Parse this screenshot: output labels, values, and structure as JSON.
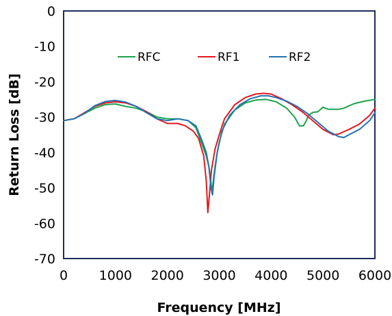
{
  "chart_data": {
    "type": "line",
    "title": "",
    "xlabel": "Frequency  [MHz]",
    "ylabel": "Return Loss  [dB]",
    "xlim": [
      0,
      6000
    ],
    "ylim": [
      -70,
      0
    ],
    "xticks": [
      0,
      1000,
      2000,
      3000,
      4000,
      5000,
      6000
    ],
    "yticks": [
      0,
      -10,
      -20,
      -30,
      -40,
      -50,
      -60,
      -70
    ],
    "xtick_labels": [
      "0",
      "1000",
      "2000",
      "3000",
      "4000",
      "5000",
      "6000"
    ],
    "ytick_labels": [
      "0",
      "-10",
      "-20",
      "-30",
      "-40",
      "-50",
      "-60",
      "-70"
    ],
    "grid": false,
    "legend_position": "top",
    "series": [
      {
        "name": "RFC",
        "color": "#1aa34a",
        "points": [
          [
            0,
            -31
          ],
          [
            200,
            -30.5
          ],
          [
            400,
            -29
          ],
          [
            600,
            -27.5
          ],
          [
            800,
            -26.5
          ],
          [
            1000,
            -26.3
          ],
          [
            1200,
            -27
          ],
          [
            1400,
            -27.5
          ],
          [
            1600,
            -28.5
          ],
          [
            1800,
            -30
          ],
          [
            2000,
            -30.5
          ],
          [
            2200,
            -30.5
          ],
          [
            2400,
            -31
          ],
          [
            2550,
            -33
          ],
          [
            2650,
            -37
          ],
          [
            2750,
            -41
          ],
          [
            2800,
            -44
          ],
          [
            2830,
            -47
          ],
          [
            2860,
            -51.5
          ],
          [
            2900,
            -46
          ],
          [
            2950,
            -41
          ],
          [
            3000,
            -37
          ],
          [
            3100,
            -32
          ],
          [
            3300,
            -28
          ],
          [
            3500,
            -26
          ],
          [
            3700,
            -25.2
          ],
          [
            3900,
            -25
          ],
          [
            4100,
            -25.7
          ],
          [
            4300,
            -27.5
          ],
          [
            4450,
            -30
          ],
          [
            4550,
            -32.5
          ],
          [
            4620,
            -32.5
          ],
          [
            4680,
            -31
          ],
          [
            4720,
            -29.5
          ],
          [
            4800,
            -28.7
          ],
          [
            4900,
            -28.5
          ],
          [
            5000,
            -27.2
          ],
          [
            5100,
            -27.8
          ],
          [
            5300,
            -27.8
          ],
          [
            5400,
            -27.5
          ],
          [
            5600,
            -26.2
          ],
          [
            5800,
            -25.5
          ],
          [
            6000,
            -25
          ]
        ]
      },
      {
        "name": "RF1",
        "color": "#e3171b",
        "points": [
          [
            0,
            -31
          ],
          [
            200,
            -30.5
          ],
          [
            400,
            -28.8
          ],
          [
            600,
            -27
          ],
          [
            800,
            -26
          ],
          [
            1000,
            -25.7
          ],
          [
            1200,
            -26
          ],
          [
            1400,
            -27
          ],
          [
            1600,
            -28.5
          ],
          [
            1800,
            -30.5
          ],
          [
            2000,
            -31.8
          ],
          [
            2200,
            -31.8
          ],
          [
            2350,
            -32.5
          ],
          [
            2500,
            -34
          ],
          [
            2600,
            -36
          ],
          [
            2700,
            -41
          ],
          [
            2750,
            -48
          ],
          [
            2780,
            -57
          ],
          [
            2810,
            -52
          ],
          [
            2850,
            -45
          ],
          [
            2920,
            -39
          ],
          [
            3000,
            -35
          ],
          [
            3100,
            -30.5
          ],
          [
            3300,
            -26.5
          ],
          [
            3500,
            -24.5
          ],
          [
            3700,
            -23.5
          ],
          [
            3850,
            -23.3
          ],
          [
            4000,
            -23.5
          ],
          [
            4200,
            -24.8
          ],
          [
            4400,
            -26.5
          ],
          [
            4600,
            -28.5
          ],
          [
            4800,
            -31
          ],
          [
            5000,
            -33.5
          ],
          [
            5200,
            -35
          ],
          [
            5300,
            -34.8
          ],
          [
            5500,
            -33.5
          ],
          [
            5700,
            -32
          ],
          [
            5900,
            -29.5
          ],
          [
            6000,
            -27.5
          ]
        ]
      },
      {
        "name": "RF2",
        "color": "#2272b4",
        "points": [
          [
            0,
            -31
          ],
          [
            200,
            -30.5
          ],
          [
            400,
            -29
          ],
          [
            600,
            -26.8
          ],
          [
            800,
            -25.6
          ],
          [
            1000,
            -25.3
          ],
          [
            1200,
            -25.8
          ],
          [
            1400,
            -27
          ],
          [
            1600,
            -28.8
          ],
          [
            1800,
            -30.5
          ],
          [
            2000,
            -31
          ],
          [
            2200,
            -30.5
          ],
          [
            2400,
            -31
          ],
          [
            2550,
            -32.5
          ],
          [
            2650,
            -36
          ],
          [
            2750,
            -40
          ],
          [
            2800,
            -44
          ],
          [
            2840,
            -50
          ],
          [
            2870,
            -52
          ],
          [
            2900,
            -47
          ],
          [
            2960,
            -40
          ],
          [
            3050,
            -34
          ],
          [
            3200,
            -29.5
          ],
          [
            3400,
            -26.5
          ],
          [
            3600,
            -24.8
          ],
          [
            3800,
            -24
          ],
          [
            3950,
            -24
          ],
          [
            4100,
            -24.5
          ],
          [
            4300,
            -25.5
          ],
          [
            4500,
            -27
          ],
          [
            4700,
            -29
          ],
          [
            4900,
            -31.5
          ],
          [
            5100,
            -34
          ],
          [
            5300,
            -35.5
          ],
          [
            5400,
            -35.8
          ],
          [
            5500,
            -35
          ],
          [
            5700,
            -33.5
          ],
          [
            5900,
            -31
          ],
          [
            6000,
            -28.8
          ]
        ]
      }
    ]
  }
}
